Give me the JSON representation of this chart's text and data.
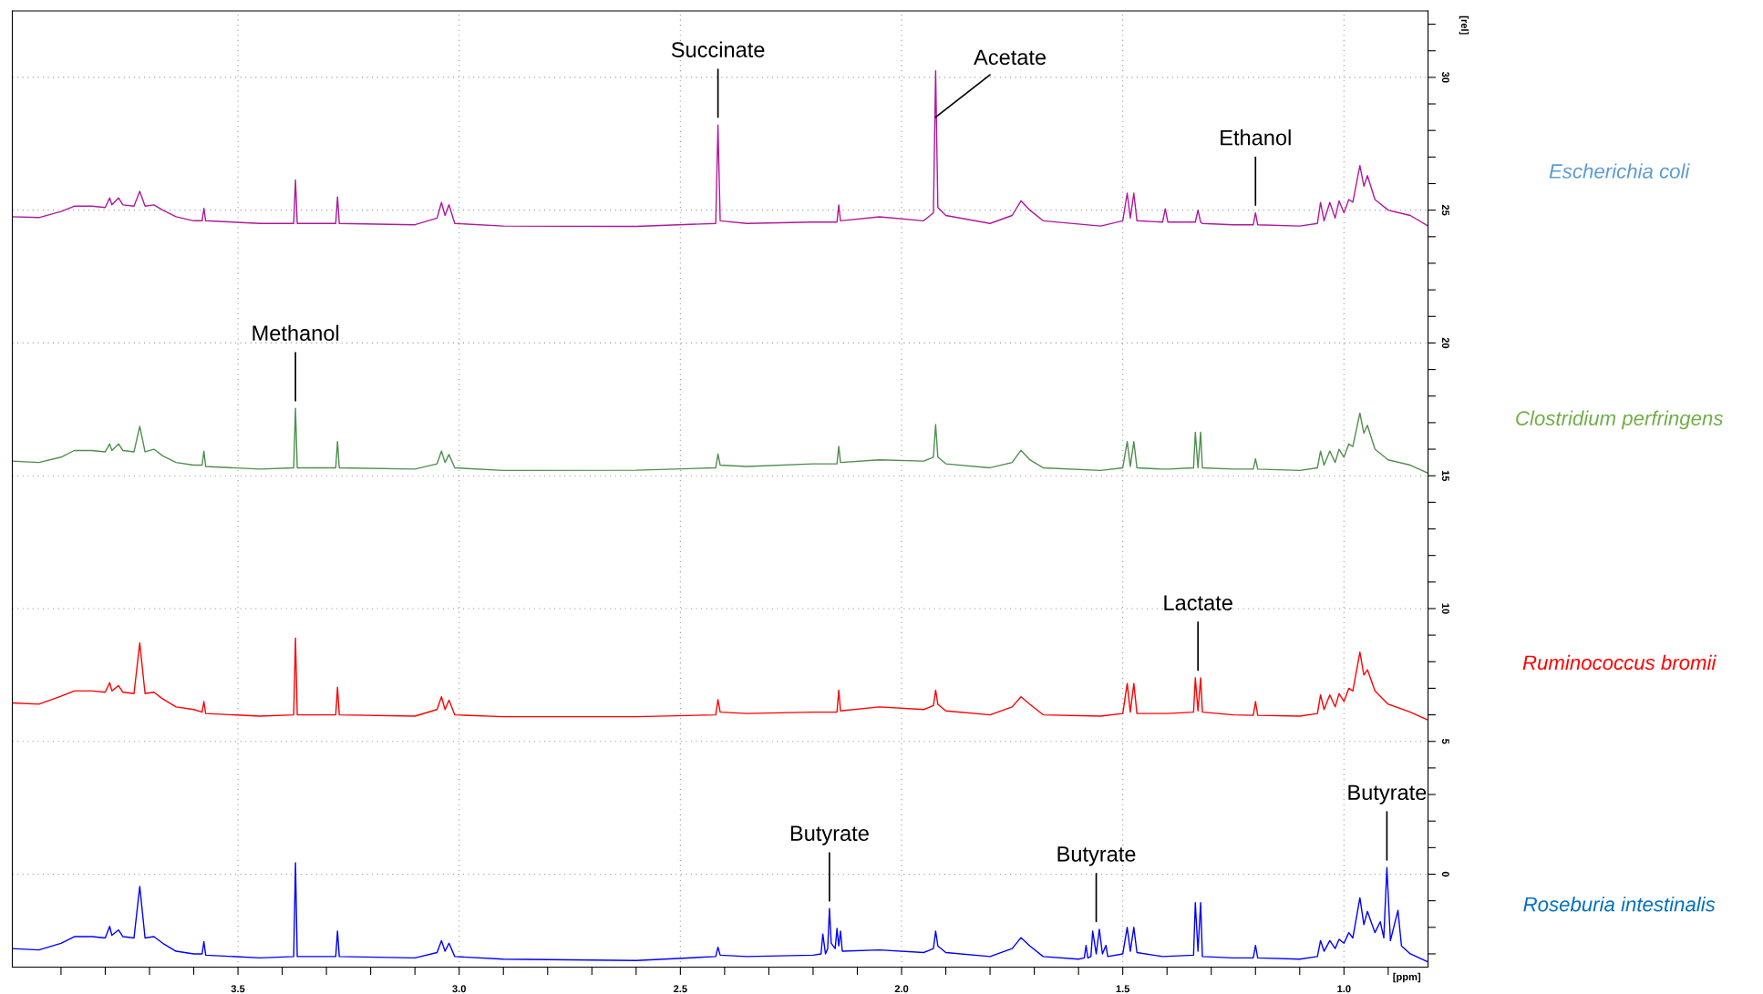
{
  "chart_data": {
    "type": "line",
    "xlabel": "[ppm]",
    "ylabel": "[rel]",
    "xlim": [
      4.01,
      0.81
    ],
    "ylim": [
      -3.5,
      32.5
    ],
    "xticks": [
      {
        "value": 3.9,
        "label": null
      },
      {
        "value": 3.8,
        "label": null
      },
      {
        "value": 3.7,
        "label": null
      },
      {
        "value": 3.6,
        "label": null
      },
      3.5,
      {
        "value": 3.4,
        "label": null
      },
      {
        "value": 3.3,
        "label": null
      },
      {
        "value": 3.2,
        "label": null
      },
      {
        "value": 3.1,
        "label": null
      },
      {
        "value": 3.0,
        "label": "3.0"
      },
      {
        "value": 2.9,
        "label": null
      },
      {
        "value": 2.8,
        "label": null
      },
      {
        "value": 2.7,
        "label": null
      },
      {
        "value": 2.6,
        "label": null
      },
      2.5,
      {
        "value": 2.4,
        "label": null
      },
      {
        "value": 2.3,
        "label": null
      },
      {
        "value": 2.2,
        "label": null
      },
      {
        "value": 2.1,
        "label": null
      },
      {
        "value": 2.0,
        "label": "2.0"
      },
      {
        "value": 1.9,
        "label": null
      },
      {
        "value": 1.8,
        "label": null
      },
      {
        "value": 1.7,
        "label": null
      },
      {
        "value": 1.6,
        "label": null
      },
      1.5,
      {
        "value": 1.4,
        "label": null
      },
      {
        "value": 1.3,
        "label": null
      },
      {
        "value": 1.2,
        "label": null
      },
      {
        "value": 1.1,
        "label": null
      },
      {
        "value": 1.0,
        "label": "1.0"
      },
      {
        "value": 0.9,
        "label": null
      }
    ],
    "yticks": [
      {
        "value": -3,
        "label": null
      },
      {
        "value": -2,
        "label": null
      },
      {
        "value": -1,
        "label": null
      },
      0,
      {
        "value": 1,
        "label": null
      },
      {
        "value": 2,
        "label": null
      },
      {
        "value": 3,
        "label": null
      },
      {
        "value": 4,
        "label": null
      },
      5,
      {
        "value": 6,
        "label": null
      },
      {
        "value": 7,
        "label": null
      },
      {
        "value": 8,
        "label": null
      },
      {
        "value": 9,
        "label": null
      },
      10,
      {
        "value": 11,
        "label": null
      },
      {
        "value": 12,
        "label": null
      },
      {
        "value": 13,
        "label": null
      },
      {
        "value": 14,
        "label": null
      },
      15,
      {
        "value": 16,
        "label": null
      },
      {
        "value": 17,
        "label": null
      },
      {
        "value": 18,
        "label": null
      },
      {
        "value": 19,
        "label": null
      },
      20,
      {
        "value": 21,
        "label": null
      },
      {
        "value": 22,
        "label": null
      },
      {
        "value": 23,
        "label": null
      },
      {
        "value": 24,
        "label": null
      },
      25,
      {
        "value": 26,
        "label": null
      },
      {
        "value": 27,
        "label": null
      },
      {
        "value": 28,
        "label": null
      },
      {
        "value": 29,
        "label": null
      },
      30,
      {
        "value": 31,
        "label": null
      },
      {
        "value": 32,
        "label": null
      }
    ],
    "grid": true,
    "legend": false,
    "series": [
      {
        "name": "Escherichia coli",
        "color": "#b0179e",
        "x": [
          4.01,
          3.95,
          3.9,
          3.87,
          3.83,
          3.8,
          3.79,
          3.785,
          3.77,
          3.76,
          3.735,
          3.722,
          3.71,
          3.69,
          3.67,
          3.64,
          3.6,
          3.581,
          3.577,
          3.573,
          3.45,
          3.374,
          3.37,
          3.366,
          3.279,
          3.275,
          3.271,
          3.1,
          3.05,
          3.04,
          3.032,
          3.023,
          3.01,
          2.9,
          2.6,
          2.42,
          2.415,
          2.41,
          2.35,
          2.2,
          2.146,
          2.142,
          2.138,
          2.05,
          1.95,
          1.928,
          1.923,
          1.918,
          1.9,
          1.8,
          1.75,
          1.73,
          1.71,
          1.68,
          1.55,
          1.5,
          1.49,
          1.483,
          1.475,
          1.468,
          1.41,
          1.404,
          1.398,
          1.34,
          1.336,
          1.33,
          1.324,
          1.32,
          1.25,
          1.205,
          1.2,
          1.195,
          1.1,
          1.06,
          1.053,
          1.045,
          1.032,
          1.02,
          1.011,
          1.0,
          0.989,
          0.98,
          0.964,
          0.955,
          0.947,
          0.93,
          0.9,
          0.85,
          0.81
        ],
        "values": [
          24.75,
          24.72,
          24.95,
          25.15,
          25.15,
          25.1,
          25.46,
          25.2,
          25.46,
          25.2,
          25.15,
          25.71,
          25.15,
          25.2,
          25.0,
          24.75,
          24.6,
          24.6,
          25.07,
          24.6,
          24.5,
          24.5,
          26.14,
          24.5,
          24.5,
          25.5,
          24.5,
          24.45,
          24.7,
          25.29,
          24.8,
          25.2,
          24.5,
          24.4,
          24.39,
          24.5,
          28.21,
          24.6,
          24.5,
          24.55,
          24.55,
          25.2,
          24.6,
          24.75,
          24.6,
          24.9,
          30.25,
          25.1,
          24.8,
          24.5,
          24.8,
          25.35,
          25.0,
          24.6,
          24.4,
          24.6,
          25.64,
          24.7,
          25.64,
          24.6,
          24.55,
          25.05,
          24.55,
          24.55,
          24.55,
          25.0,
          24.55,
          24.5,
          24.45,
          24.45,
          24.9,
          24.45,
          24.4,
          24.5,
          25.29,
          24.6,
          25.29,
          24.7,
          25.35,
          24.9,
          25.4,
          25.3,
          26.68,
          25.9,
          26.3,
          25.4,
          25.0,
          24.8,
          24.4
        ]
      },
      {
        "name": "Clostridium perfringens",
        "color": "#4e8f4e",
        "x": [
          4.01,
          3.95,
          3.9,
          3.87,
          3.83,
          3.8,
          3.79,
          3.785,
          3.77,
          3.76,
          3.735,
          3.722,
          3.71,
          3.69,
          3.67,
          3.64,
          3.6,
          3.581,
          3.577,
          3.573,
          3.45,
          3.374,
          3.37,
          3.366,
          3.279,
          3.275,
          3.271,
          3.1,
          3.05,
          3.04,
          3.032,
          3.023,
          3.01,
          2.9,
          2.6,
          2.42,
          2.415,
          2.41,
          2.35,
          2.2,
          2.146,
          2.142,
          2.138,
          2.05,
          1.95,
          1.928,
          1.923,
          1.918,
          1.9,
          1.8,
          1.75,
          1.73,
          1.71,
          1.68,
          1.55,
          1.5,
          1.49,
          1.483,
          1.475,
          1.468,
          1.41,
          1.404,
          1.398,
          1.34,
          1.336,
          1.33,
          1.324,
          1.32,
          1.25,
          1.205,
          1.2,
          1.195,
          1.1,
          1.06,
          1.053,
          1.045,
          1.032,
          1.02,
          1.011,
          1.0,
          0.989,
          0.98,
          0.964,
          0.955,
          0.947,
          0.93,
          0.9,
          0.85,
          0.81
        ],
        "values": [
          15.55,
          15.5,
          15.7,
          15.95,
          15.95,
          15.9,
          16.2,
          15.95,
          16.2,
          15.95,
          15.9,
          16.86,
          15.9,
          16.0,
          15.75,
          15.5,
          15.4,
          15.4,
          15.93,
          15.35,
          15.25,
          15.3,
          17.54,
          15.3,
          15.3,
          16.29,
          15.3,
          15.25,
          15.45,
          15.93,
          15.5,
          15.8,
          15.3,
          15.2,
          15.21,
          15.3,
          15.82,
          15.4,
          15.35,
          15.45,
          15.45,
          16.11,
          15.5,
          15.6,
          15.55,
          15.7,
          16.93,
          15.7,
          15.45,
          15.3,
          15.5,
          15.96,
          15.6,
          15.3,
          15.2,
          15.3,
          16.29,
          15.35,
          16.29,
          15.3,
          15.25,
          15.25,
          15.25,
          15.3,
          16.64,
          15.3,
          16.64,
          15.3,
          15.25,
          15.25,
          15.64,
          15.25,
          15.2,
          15.3,
          15.93,
          15.4,
          15.93,
          15.5,
          16.0,
          15.7,
          16.2,
          16.1,
          17.36,
          16.6,
          16.9,
          16.0,
          15.6,
          15.4,
          15.1
        ]
      },
      {
        "name": "Ruminococcus bromii",
        "color": "#ff0000",
        "x": [
          4.01,
          3.95,
          3.9,
          3.87,
          3.83,
          3.8,
          3.79,
          3.785,
          3.77,
          3.76,
          3.735,
          3.722,
          3.71,
          3.69,
          3.67,
          3.64,
          3.6,
          3.581,
          3.577,
          3.573,
          3.45,
          3.374,
          3.37,
          3.366,
          3.279,
          3.275,
          3.271,
          3.1,
          3.05,
          3.04,
          3.032,
          3.023,
          3.01,
          2.9,
          2.6,
          2.42,
          2.415,
          2.41,
          2.35,
          2.2,
          2.146,
          2.142,
          2.138,
          2.05,
          1.95,
          1.928,
          1.923,
          1.918,
          1.9,
          1.8,
          1.75,
          1.73,
          1.71,
          1.68,
          1.55,
          1.5,
          1.49,
          1.483,
          1.475,
          1.468,
          1.41,
          1.404,
          1.398,
          1.34,
          1.336,
          1.33,
          1.324,
          1.32,
          1.25,
          1.205,
          1.2,
          1.195,
          1.1,
          1.06,
          1.053,
          1.045,
          1.032,
          1.02,
          1.011,
          1.0,
          0.989,
          0.98,
          0.964,
          0.955,
          0.947,
          0.93,
          0.9,
          0.85,
          0.81
        ],
        "values": [
          6.45,
          6.4,
          6.7,
          6.9,
          6.9,
          6.85,
          7.21,
          6.9,
          7.1,
          6.85,
          6.8,
          8.71,
          6.8,
          6.85,
          6.6,
          6.3,
          6.2,
          6.1,
          6.5,
          6.05,
          5.95,
          6.0,
          8.89,
          6.0,
          6.0,
          7.04,
          6.0,
          5.95,
          6.2,
          6.68,
          6.2,
          6.55,
          6.0,
          5.93,
          5.93,
          6.0,
          6.57,
          6.1,
          6.05,
          6.1,
          6.1,
          6.93,
          6.15,
          6.3,
          6.2,
          6.35,
          6.93,
          6.4,
          6.15,
          6.0,
          6.3,
          6.68,
          6.4,
          6.0,
          5.95,
          6.05,
          7.18,
          6.1,
          7.18,
          6.05,
          6.05,
          6.05,
          6.05,
          6.1,
          7.39,
          6.15,
          7.39,
          6.1,
          6.0,
          5.98,
          6.5,
          5.98,
          5.95,
          6.05,
          6.75,
          6.2,
          6.75,
          6.3,
          6.8,
          6.5,
          7.0,
          6.9,
          8.36,
          7.5,
          7.7,
          6.9,
          6.4,
          6.1,
          5.8
        ]
      },
      {
        "name": "Roseburia intestinalis",
        "color": "#0000ff",
        "x": [
          4.01,
          3.95,
          3.9,
          3.87,
          3.83,
          3.8,
          3.79,
          3.785,
          3.77,
          3.76,
          3.735,
          3.722,
          3.71,
          3.69,
          3.67,
          3.64,
          3.6,
          3.581,
          3.577,
          3.573,
          3.45,
          3.374,
          3.37,
          3.366,
          3.279,
          3.275,
          3.271,
          3.1,
          3.05,
          3.04,
          3.032,
          3.023,
          3.01,
          2.9,
          2.6,
          2.42,
          2.415,
          2.41,
          2.35,
          2.2,
          2.182,
          2.178,
          2.172,
          2.167,
          2.163,
          2.159,
          2.15,
          2.146,
          2.142,
          2.138,
          2.134,
          2.05,
          1.95,
          1.928,
          1.923,
          1.918,
          1.9,
          1.8,
          1.75,
          1.73,
          1.71,
          1.68,
          1.6,
          1.587,
          1.583,
          1.579,
          1.572,
          1.568,
          1.56,
          1.553,
          1.546,
          1.538,
          1.534,
          1.5,
          1.49,
          1.483,
          1.475,
          1.468,
          1.41,
          1.34,
          1.336,
          1.33,
          1.324,
          1.32,
          1.25,
          1.205,
          1.2,
          1.195,
          1.1,
          1.06,
          1.053,
          1.045,
          1.032,
          1.02,
          1.011,
          1.0,
          0.989,
          0.98,
          0.964,
          0.955,
          0.947,
          0.93,
          0.918,
          0.91,
          0.903,
          0.895,
          0.878,
          0.87,
          0.85,
          0.81
        ],
        "values": [
          -2.8,
          -2.85,
          -2.6,
          -2.35,
          -2.35,
          -2.4,
          -1.96,
          -2.3,
          -2.1,
          -2.35,
          -2.4,
          -0.46,
          -2.4,
          -2.35,
          -2.6,
          -2.9,
          -3.0,
          -3.0,
          -2.54,
          -3.05,
          -3.15,
          -3.1,
          0.43,
          -3.1,
          -3.1,
          -2.14,
          -3.1,
          -3.15,
          -2.95,
          -2.5,
          -2.9,
          -2.6,
          -3.1,
          -3.2,
          -3.25,
          -3.1,
          -2.75,
          -3.05,
          -3.1,
          -3.05,
          -3.0,
          -2.25,
          -3.0,
          -2.8,
          -1.29,
          -2.6,
          -2.8,
          -2.04,
          -2.7,
          -2.14,
          -2.9,
          -2.85,
          -2.95,
          -2.8,
          -2.14,
          -2.7,
          -2.95,
          -3.1,
          -2.8,
          -2.39,
          -2.7,
          -3.1,
          -3.2,
          -3.15,
          -2.68,
          -3.15,
          -3.1,
          -2.14,
          -3.0,
          -2.07,
          -3.0,
          -2.68,
          -3.1,
          -3.0,
          -2.0,
          -2.9,
          -2.0,
          -2.95,
          -3.1,
          -3.05,
          -1.07,
          -2.9,
          -1.07,
          -3.1,
          -3.15,
          -3.15,
          -2.68,
          -3.15,
          -3.2,
          -3.1,
          -2.5,
          -2.9,
          -2.5,
          -2.8,
          -2.45,
          -2.6,
          -2.2,
          -2.4,
          -0.89,
          -1.9,
          -1.4,
          -2.2,
          -1.79,
          -2.4,
          0.25,
          -2.5,
          -1.36,
          -2.7,
          -3.0,
          -3.3
        ]
      }
    ],
    "annotations": [
      {
        "text": "Succinate",
        "x": 2.415,
        "y": 28.21
      },
      {
        "text": "Acetate",
        "x": 1.923,
        "y": 28.5
      },
      {
        "text": "Ethanol",
        "x": 1.2,
        "y": 24.9
      },
      {
        "text": "Methanol",
        "x": 3.37,
        "y": 17.54
      },
      {
        "text": "Lactate",
        "x": 1.33,
        "y": 7.39
      },
      {
        "text": "Butyrate",
        "x": 2.163,
        "y": -1.29
      },
      {
        "text": "Butyrate",
        "x": 1.56,
        "y": -2.07
      },
      {
        "text": "Butyrate",
        "x": 0.903,
        "y": 0.25
      }
    ]
  }
}
